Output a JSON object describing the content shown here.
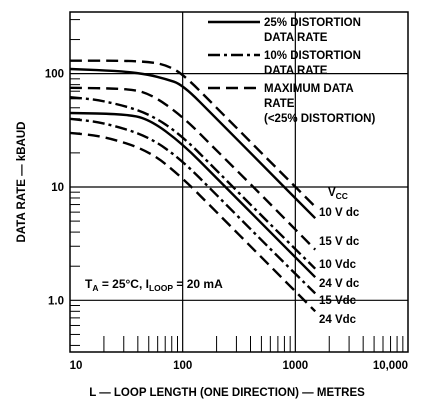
{
  "chart_data": {
    "type": "line",
    "title": "",
    "xlabel": "L — LOOP LENGTH (ONE DIRECTION) — METRES",
    "ylabel": "DATA RATE — kBAUD",
    "x_scale": "log",
    "y_scale": "log",
    "xlim": [
      10,
      10000
    ],
    "ylim": [
      0.35,
      350
    ],
    "grid": true,
    "x_tick_labels": [
      "10",
      "100",
      "1000",
      "10,000"
    ],
    "y_tick_labels": [
      "1.0",
      "10",
      "100"
    ],
    "legend": {
      "placement": "top-right",
      "entries": [
        {
          "style": "solid",
          "lines": [
            "25% DISTORTION",
            "DATA RATE"
          ]
        },
        {
          "style": "dash-dot",
          "lines": [
            "10% DISTORTION",
            "DATA RATE"
          ]
        },
        {
          "style": "dashed",
          "lines": [
            "MAXIMUM DATA",
            "RATE",
            "(<25% DISTORTION)"
          ]
        }
      ]
    },
    "label_header": "V",
    "label_header_sub": "CC",
    "annotation": {
      "text": "T",
      "sub1": "A",
      "text2": " = 25°C, I",
      "sub2": "LOOP",
      "text3": " = 20 mA"
    },
    "series": [
      {
        "style": "dashed",
        "label": "",
        "x": [
          10,
          30,
          50,
          70,
          100,
          200,
          500,
          1500
        ],
        "y": [
          130,
          130,
          127,
          120,
          100,
          50,
          20,
          6.7
        ]
      },
      {
        "style": "solid",
        "label": "10 V dc",
        "x": [
          10,
          30,
          50,
          70,
          100,
          200,
          500,
          1500
        ],
        "y": [
          110,
          105,
          98,
          90,
          80,
          40,
          16,
          5.3
        ]
      },
      {
        "style": "dashed",
        "label": "15 V dc",
        "x": [
          10,
          30,
          50,
          100,
          200,
          500,
          1500
        ],
        "y": [
          75,
          74,
          68,
          42,
          21,
          8.5,
          2.8
        ]
      },
      {
        "style": "dash-dot",
        "label": "10 Vdc",
        "x": [
          10,
          20,
          50,
          100,
          200,
          500,
          1500
        ],
        "y": [
          62,
          58,
          45,
          28,
          14,
          5.6,
          1.9
        ]
      },
      {
        "style": "solid",
        "label": "24 V dc",
        "x": [
          10,
          30,
          50,
          100,
          200,
          500,
          1500
        ],
        "y": [
          45,
          44,
          40,
          24,
          12,
          4.8,
          1.6
        ]
      },
      {
        "style": "dash-dot",
        "label": "15 Vdc",
        "x": [
          10,
          20,
          50,
          100,
          200,
          500,
          1500
        ],
        "y": [
          40,
          37,
          28,
          17,
          8.5,
          3.4,
          1.15
        ]
      },
      {
        "style": "dashed",
        "label": "24 Vdc",
        "x": [
          10,
          20,
          50,
          100,
          200,
          500,
          1500
        ],
        "y": [
          30,
          28,
          21,
          12,
          6,
          2.4,
          0.8
        ]
      }
    ]
  }
}
